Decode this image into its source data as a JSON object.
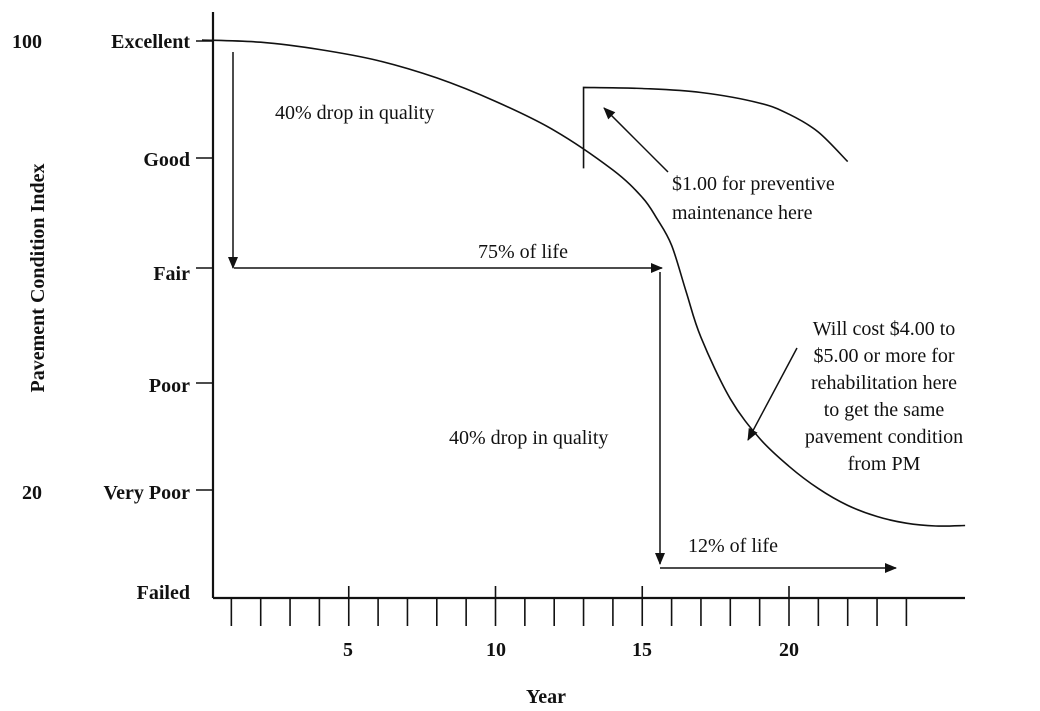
{
  "chart_data": {
    "type": "line",
    "title": "",
    "xlabel": "Year",
    "ylabel": "Pavement Condition Index",
    "x_ticks": [
      5,
      10,
      15,
      20
    ],
    "y_numeric_labels": [
      "100",
      "20"
    ],
    "y_categories": [
      "Excellent",
      "Good",
      "Fair",
      "Poor",
      "Very Poor",
      "Failed"
    ],
    "grid": false,
    "series": [
      {
        "x": [
          0,
          2,
          4,
          6,
          8,
          10,
          12,
          14,
          15,
          15.5,
          16,
          16.5,
          17,
          18,
          19,
          20,
          21,
          22,
          23,
          24,
          25,
          26
        ],
        "y": [
          100,
          99.6,
          98.3,
          96.3,
          93.2,
          89.0,
          83.8,
          76.7,
          71.8,
          68.0,
          63.2,
          54.8,
          46.7,
          35.7,
          28.6,
          23.6,
          19.6,
          16.6,
          14.6,
          13.4,
          12.9,
          13.0
        ]
      },
      {
        "x": [
          13,
          13,
          15,
          17,
          19,
          20,
          21,
          22
        ],
        "y": [
          77,
          91.5,
          91.3,
          90.6,
          88.7,
          86.7,
          83.5,
          78.2
        ]
      }
    ],
    "annotations": [
      {
        "text": "40% drop in quality"
      },
      {
        "text": "75% of life"
      },
      {
        "text": "$1.00 for preventive maintenance here"
      },
      {
        "text": "Will cost $4.00 to $5.00 or more for rehabilitation here to get the same pavement condition from PM"
      },
      {
        "text": "40% drop in quality"
      },
      {
        "text": "12% of life"
      }
    ]
  }
}
